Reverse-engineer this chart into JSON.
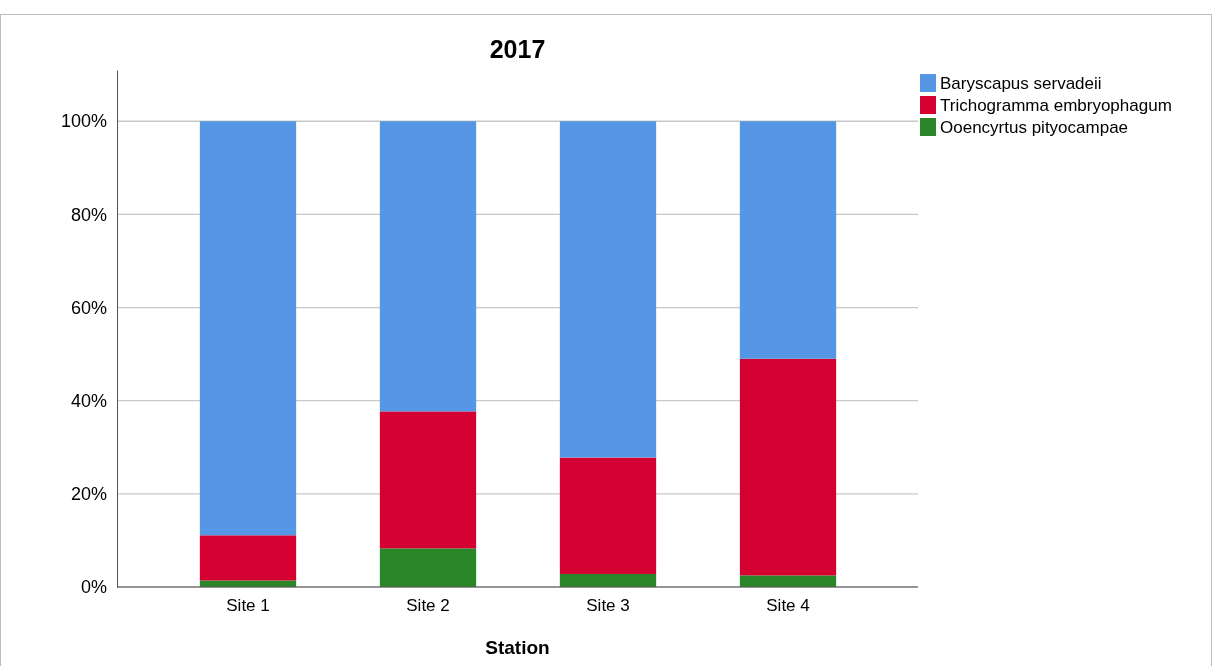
{
  "chart_data": {
    "type": "bar",
    "title": "2017",
    "xlabel": "Station",
    "categories": [
      "Site 1",
      "Site 2",
      "Site 3",
      "Site 4"
    ],
    "stacked": true,
    "series": [
      {
        "name": "Ooencyrtus pityocampae",
        "color": "#2a8629",
        "values": [
          1.4,
          8.3,
          2.8,
          2.5
        ]
      },
      {
        "name": "Trichogramma embryophagum",
        "color": "#d50032",
        "values": [
          9.7,
          29.4,
          25.0,
          46.5
        ]
      },
      {
        "name": "Baryscapus servadeii",
        "color": "#5597e4",
        "values": [
          88.9,
          62.3,
          72.2,
          51.0
        ]
      }
    ],
    "ylim": [
      0,
      111
    ],
    "yticks": [
      {
        "value": 0,
        "label": "0%"
      },
      {
        "value": 20,
        "label": "20%"
      },
      {
        "value": 40,
        "label": "40%"
      },
      {
        "value": 60,
        "label": "60%"
      },
      {
        "value": 80,
        "label": "80%"
      },
      {
        "value": 100,
        "label": "100%"
      }
    ],
    "grid": "y",
    "legend": "top right"
  }
}
